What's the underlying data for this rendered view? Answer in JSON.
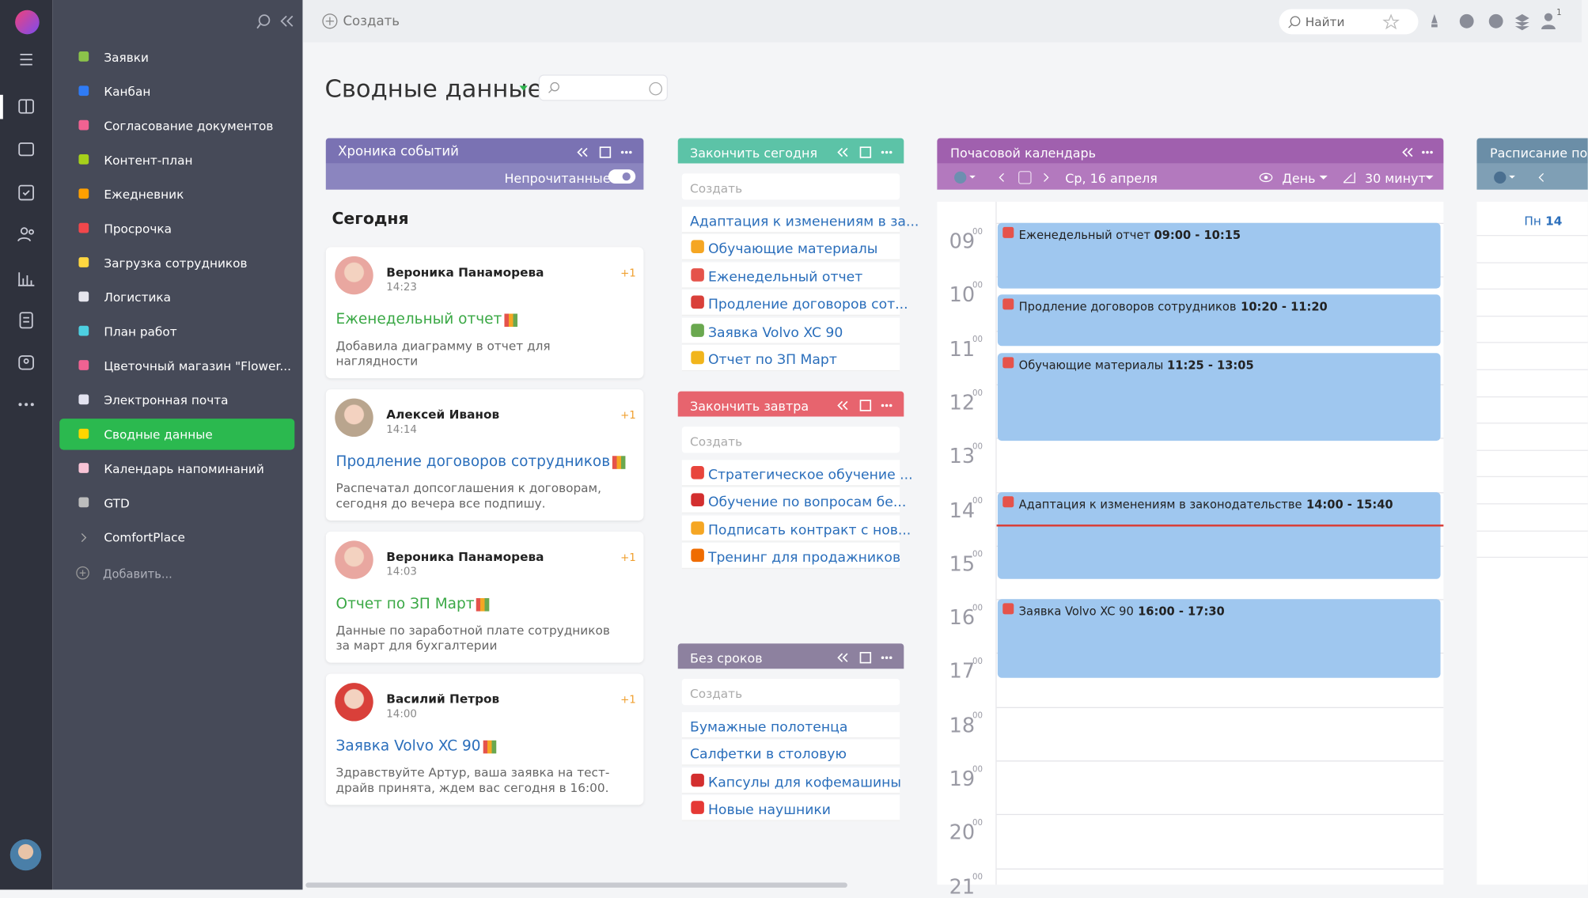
{
  "topbar": {
    "create": "Создать",
    "search": "Найти",
    "badge": "1"
  },
  "sidebar": {
    "items": [
      {
        "label": "Заявки",
        "color": "#8bc34a"
      },
      {
        "label": "Канбан",
        "color": "#2f7bf5"
      },
      {
        "label": "Согласование документов",
        "color": "#f06292"
      },
      {
        "label": "Контент-план",
        "color": "#a6d11a"
      },
      {
        "label": "Ежедневник",
        "color": "#ffa000"
      },
      {
        "label": "Просрочка",
        "color": "#f2474b"
      },
      {
        "label": "Загрузка сотрудников",
        "color": "#ffd740"
      },
      {
        "label": "Логистика",
        "color": "#e6e6ee"
      },
      {
        "label": "План работ",
        "color": "#4dd0e1"
      },
      {
        "label": "Цветочный магазин \"Flower...",
        "color": "#f06292"
      },
      {
        "label": "Электронная почта",
        "color": "#e3e3f0"
      },
      {
        "label": "Сводные данные",
        "color": "#ffd600",
        "active": true
      },
      {
        "label": "Календарь напоминаний",
        "color": "#f8c4d6"
      },
      {
        "label": "GTD",
        "color": "#bdbdbd"
      }
    ],
    "group": "ComfortPlace",
    "add": "Добавить..."
  },
  "page": {
    "title": "Сводные данные"
  },
  "timeline": {
    "title": "Хроника событий",
    "toggle": "Непрочитанные",
    "day": "Сегодня",
    "events": [
      {
        "author": "Вероника Панаморева",
        "time": "14:23",
        "badge": "+1",
        "title": "Еженедельный отчет",
        "color": "#3aa845",
        "lines": [
          "Добавила диаграмму в отчет для",
          "наглядности"
        ]
      },
      {
        "author": "Алексей Иванов",
        "time": "14:14",
        "badge": "+1",
        "title": "Продление договоров сотрудников",
        "color": "#2a6ebb",
        "lines": [
          "Распечатал допсоглашения к договорам,",
          "сегодня до вечера все подпишу."
        ]
      },
      {
        "author": "Вероника Панаморева",
        "time": "14:03",
        "badge": "+1",
        "title": "Отчет по ЗП Март",
        "color": "#3aa845",
        "lines": [
          "Данные по заработной плате сотрудников",
          "за март для бухгалтерии"
        ]
      },
      {
        "author": "Василий Петров",
        "time": "14:00",
        "badge": "+1",
        "title": "Заявка Volvo XC 90",
        "color": "#2a6ebb",
        "lines": [
          "Здравствуйте Артур, ваша заявка на тест-",
          "драйв принята, ждем вас сегодня в 16:00."
        ]
      }
    ]
  },
  "lists": [
    {
      "title": "Закончить сегодня",
      "color": "#5cc3a7",
      "create": "Создать",
      "items": [
        {
          "text": "Адаптация к изменениям в за..."
        },
        {
          "text": "Обучающие материалы",
          "icon": "#f5a623"
        },
        {
          "text": "Еженедельный отчет",
          "icon": "#e5534b"
        },
        {
          "text": "Продление договоров сот...",
          "icon": "#d9403a"
        },
        {
          "text": "Заявка Volvo XC 90",
          "icon": "#6aa84f"
        },
        {
          "text": "Отчет по ЗП Март",
          "icon": "#f1b51c"
        }
      ]
    },
    {
      "title": "Закончить завтра",
      "color": "#e7646e",
      "create": "Создать",
      "items": [
        {
          "text": "Стратегическое обучение ...",
          "icon": "#e8453c"
        },
        {
          "text": "Обучение по вопросам бе...",
          "icon": "#d32f2f"
        },
        {
          "text": "Подписать контракт с нов...",
          "icon": "#f5a623"
        },
        {
          "text": "Тренинг для продажников",
          "icon": "#ef6c00"
        }
      ]
    },
    {
      "title": "Без сроков",
      "color": "#8d819f",
      "create": "Создать",
      "items": [
        {
          "text": "Бумажные полотенца"
        },
        {
          "text": "Салфетки в столовую"
        },
        {
          "text": "Капсулы для кофемашины",
          "icon": "#d32f2f"
        },
        {
          "text": "Новые наушники",
          "icon": "#e53935"
        }
      ]
    }
  ],
  "calendar": {
    "title": "Почасовой календарь",
    "date": "Ср, 16 апреля",
    "view": "День",
    "step": "30 минут",
    "minutes": "00",
    "hours": [
      "09",
      "10",
      "11",
      "12",
      "13",
      "14",
      "15",
      "16",
      "17",
      "18",
      "19",
      "20",
      "21"
    ],
    "events": [
      {
        "title": "Еженедельный отчет",
        "time": "09:00 - 10:15"
      },
      {
        "title": "Продление договоров сотрудников",
        "time": "10:20 - 11:20"
      },
      {
        "title": "Обучающие материалы",
        "time": "11:25 - 13:05"
      },
      {
        "title": "Адаптация к изменениям в законодательстве",
        "time": "14:00 - 15:40"
      },
      {
        "title": "Заявка Volvo XC 90",
        "time": "16:00 - 17:30"
      }
    ]
  },
  "schedule": {
    "title": "Расписание по",
    "day": "Пн",
    "date": "14"
  }
}
